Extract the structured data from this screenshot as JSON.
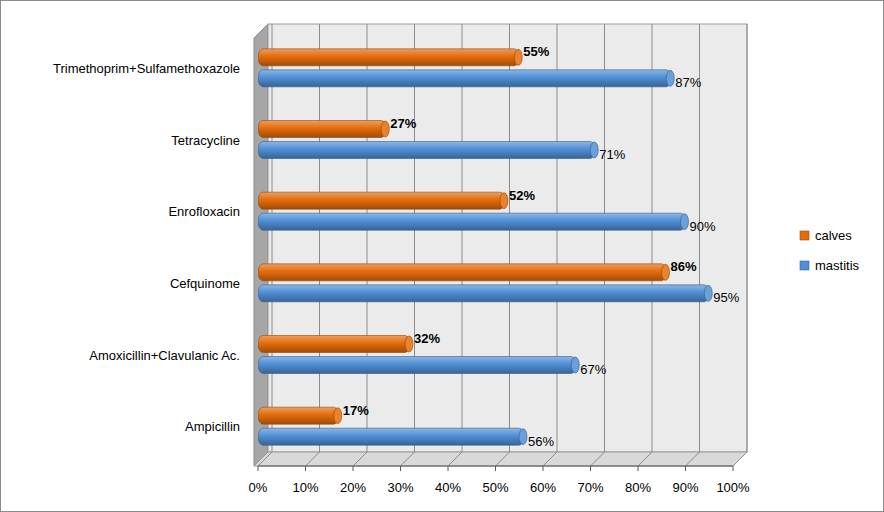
{
  "chart_data": {
    "type": "bar",
    "orientation": "horizontal",
    "categories": [
      "Ampicillin",
      "Amoxicillin+Clavulanic Ac.",
      "Cefquinome",
      "Enrofloxacin",
      "Tetracycline",
      "Trimethoprim+Sulfamethoxazole"
    ],
    "series": [
      {
        "name": "calves",
        "color": "#e46c0a",
        "values": [
          17,
          32,
          86,
          52,
          27,
          55
        ],
        "value_labels": [
          "17%",
          "32%",
          "86%",
          "52%",
          "27%",
          "55%"
        ]
      },
      {
        "name": "mastitis",
        "color": "#4f8fd6",
        "values": [
          56,
          67,
          95,
          90,
          71,
          87
        ],
        "value_labels": [
          "56%",
          "67%",
          "95%",
          "90%",
          "71%",
          "87%"
        ]
      }
    ],
    "xlim": [
      0,
      100
    ],
    "xticks": [
      {
        "value": 0,
        "label": "0%"
      },
      {
        "value": 10,
        "label": "10%"
      },
      {
        "value": 20,
        "label": "20%"
      },
      {
        "value": 30,
        "label": "30%"
      },
      {
        "value": 40,
        "label": "40%"
      },
      {
        "value": 50,
        "label": "50%"
      },
      {
        "value": 60,
        "label": "60%"
      },
      {
        "value": 70,
        "label": "70%"
      },
      {
        "value": 80,
        "label": "80%"
      },
      {
        "value": 90,
        "label": "90%"
      },
      {
        "value": 100,
        "label": "100%"
      }
    ],
    "grid": true,
    "legend": "right",
    "data_labels": true
  }
}
